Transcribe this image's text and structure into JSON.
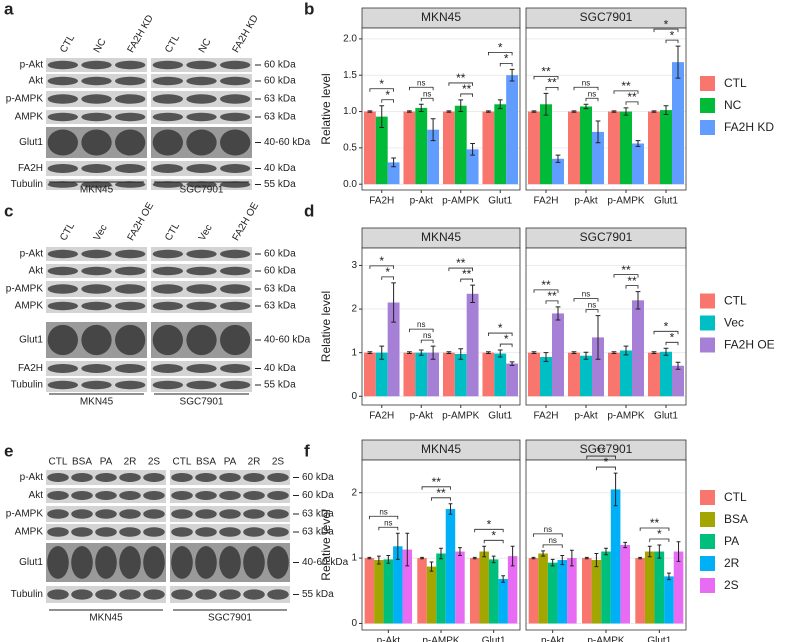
{
  "blots": [
    {
      "label": "a",
      "lanes": [
        "CTL",
        "NC",
        "FA2H KD",
        "CTL",
        "NC",
        "FA2H KD"
      ],
      "rows": [
        {
          "protein": "p-Akt",
          "size": "60 kDa"
        },
        {
          "protein": "Akt",
          "size": "60 kDa"
        },
        {
          "protein": "p-AMPK",
          "size": "63 kDa"
        },
        {
          "protein": "AMPK",
          "size": "63 kDa"
        },
        {
          "protein": "Glut1",
          "size": "40-60 kDa"
        },
        {
          "protein": "FA2H",
          "size": "40 kDa"
        },
        {
          "protein": "Tubulin",
          "size": "55 kDa"
        }
      ],
      "groups": [
        "MKN45",
        "SGC7901"
      ]
    },
    {
      "label": "c",
      "lanes": [
        "CTL",
        "Vec",
        "FA2H OE",
        "CTL",
        "Vec",
        "FA2H OE"
      ],
      "rows": [
        {
          "protein": "p-Akt",
          "size": "60 kDa"
        },
        {
          "protein": "Akt",
          "size": "60 kDa"
        },
        {
          "protein": "p-AMPK",
          "size": "63 kDa"
        },
        {
          "protein": "AMPK",
          "size": "63 kDa"
        },
        {
          "protein": "Glut1",
          "size": "40-60 kDa"
        },
        {
          "protein": "FA2H",
          "size": "40 kDa"
        },
        {
          "protein": "Tubulin",
          "size": "55 kDa"
        }
      ],
      "groups": [
        "MKN45",
        "SGC7901"
      ]
    },
    {
      "label": "e",
      "lanes": [
        "CTL",
        "BSA",
        "PA",
        "2R",
        "2S",
        "CTL",
        "BSA",
        "PA",
        "2R",
        "2S"
      ],
      "rows": [
        {
          "protein": "p-Akt",
          "size": "60 kDa"
        },
        {
          "protein": "Akt",
          "size": "60 kDa"
        },
        {
          "protein": "p-AMPK",
          "size": "63 kDa"
        },
        {
          "protein": "AMPK",
          "size": "63 kDa"
        },
        {
          "protein": "Glut1",
          "size": "40-60 kDa"
        },
        {
          "protein": "Tubulin",
          "size": "55 kDa"
        }
      ],
      "groups": [
        "MKN45",
        "SGC7901"
      ]
    }
  ],
  "chart_data": [
    {
      "type": "bar",
      "label": "b",
      "ylabel": "Relative level",
      "ylim": [
        -0.08,
        2.15
      ],
      "yticks": [
        {
          "value": 0,
          "label": "0.0"
        },
        {
          "value": 0.5,
          "label": "0.5"
        },
        {
          "value": 1,
          "label": "1.0"
        },
        {
          "value": 1.5,
          "label": "1.5"
        },
        {
          "value": 2,
          "label": "2.0"
        }
      ],
      "grid": true,
      "legend": "right",
      "series": [
        {
          "name": "CTL",
          "color": "#F8766D"
        },
        {
          "name": "NC",
          "color": "#00BA38"
        },
        {
          "name": "FA2H KD",
          "color": "#619CFF"
        }
      ],
      "facets": [
        {
          "title": "MKN45",
          "categories": [
            "FA2H",
            "p-Akt",
            "p-AMPK",
            "Glut1"
          ],
          "values": [
            [
              1,
              1,
              1,
              1
            ],
            [
              0.93,
              1.05,
              1.08,
              1.1
            ],
            [
              0.3,
              0.75,
              0.48,
              1.5
            ]
          ],
          "errors": [
            [
              0.01,
              0.01,
              0.01,
              0.01
            ],
            [
              0.15,
              0.05,
              0.08,
              0.06
            ],
            [
              0.06,
              0.15,
              0.08,
              0.08
            ]
          ],
          "annotations": [
            {
              "category": "FA2H",
              "vs": "FA2H KD",
              "labels": [
                "*",
                "*"
              ]
            },
            {
              "category": "p-Akt",
              "vs": "FA2H KD",
              "labels": [
                "ns",
                "ns"
              ]
            },
            {
              "category": "p-AMPK",
              "vs": "FA2H KD",
              "labels": [
                "**",
                "**"
              ]
            },
            {
              "category": "Glut1",
              "vs": "FA2H KD",
              "labels": [
                "*",
                "*"
              ]
            }
          ]
        },
        {
          "title": "SGC7901",
          "categories": [
            "FA2H",
            "p-Akt",
            "p-AMPK",
            "Glut1"
          ],
          "values": [
            [
              1,
              1,
              1,
              1
            ],
            [
              1.1,
              1.07,
              1,
              1.02
            ],
            [
              0.35,
              0.72,
              0.56,
              1.68
            ]
          ],
          "errors": [
            [
              0.01,
              0.01,
              0.01,
              0.01
            ],
            [
              0.15,
              0.03,
              0.05,
              0.06
            ],
            [
              0.05,
              0.15,
              0.04,
              0.22
            ]
          ],
          "annotations": [
            {
              "category": "FA2H",
              "vs": "FA2H KD",
              "labels": [
                "**",
                "**"
              ]
            },
            {
              "category": "p-Akt",
              "vs": "FA2H KD",
              "labels": [
                "ns",
                "ns"
              ]
            },
            {
              "category": "p-AMPK",
              "vs": "FA2H KD",
              "labels": [
                "**",
                "**"
              ]
            },
            {
              "category": "Glut1",
              "vs": "FA2H KD",
              "labels": [
                "*",
                "*"
              ]
            }
          ]
        }
      ]
    },
    {
      "type": "bar",
      "label": "d",
      "ylabel": "Relative level",
      "ylim": [
        -0.2,
        3.4
      ],
      "yticks": [
        0,
        1,
        2,
        3
      ],
      "grid": true,
      "legend": "right",
      "series": [
        {
          "name": "CTL",
          "color": "#F8766D"
        },
        {
          "name": "Vec",
          "color": "#00BFC4"
        },
        {
          "name": "FA2H OE",
          "color": "#A67FD6"
        }
      ],
      "facets": [
        {
          "title": "MKN45",
          "categories": [
            "FA2H",
            "p-Akt",
            "p-AMPK",
            "Glut1"
          ],
          "values": [
            [
              1,
              1,
              1,
              1
            ],
            [
              1,
              1,
              0.97,
              0.98
            ],
            [
              2.15,
              1,
              2.35,
              0.75
            ]
          ],
          "errors": [
            [
              0.02,
              0.02,
              0.02,
              0.02
            ],
            [
              0.15,
              0.06,
              0.12,
              0.08
            ],
            [
              0.45,
              0.15,
              0.2,
              0.04
            ]
          ],
          "annotations": [
            {
              "category": "FA2H",
              "vs": "FA2H OE",
              "labels": [
                "*",
                "*"
              ]
            },
            {
              "category": "p-Akt",
              "vs": "FA2H OE",
              "labels": [
                "ns",
                "ns"
              ]
            },
            {
              "category": "p-AMPK",
              "vs": "FA2H OE",
              "labels": [
                "**",
                "**"
              ]
            },
            {
              "category": "Glut1",
              "vs": "FA2H OE",
              "labels": [
                "*",
                "*"
              ]
            }
          ]
        },
        {
          "title": "SGC7901",
          "categories": [
            "FA2H",
            "p-Akt",
            "p-AMPK",
            "Glut1"
          ],
          "values": [
            [
              1,
              1,
              1,
              1
            ],
            [
              0.9,
              0.93,
              1.05,
              1.02
            ],
            [
              1.9,
              1.35,
              2.2,
              0.7
            ]
          ],
          "errors": [
            [
              0.02,
              0.02,
              0.02,
              0.02
            ],
            [
              0.1,
              0.08,
              0.1,
              0.08
            ],
            [
              0.15,
              0.5,
              0.2,
              0.08
            ]
          ],
          "annotations": [
            {
              "category": "FA2H",
              "vs": "FA2H OE",
              "labels": [
                "**",
                "**"
              ]
            },
            {
              "category": "p-Akt",
              "vs": "FA2H OE",
              "labels": [
                "ns",
                "ns"
              ]
            },
            {
              "category": "p-AMPK",
              "vs": "FA2H OE",
              "labels": [
                "**",
                "**"
              ]
            },
            {
              "category": "Glut1",
              "vs": "FA2H OE",
              "labels": [
                "*",
                "*"
              ]
            }
          ]
        }
      ]
    },
    {
      "type": "bar",
      "label": "f",
      "ylabel": "Relative level",
      "ylim": [
        -0.1,
        2.5
      ],
      "yticks": [
        0,
        1,
        2
      ],
      "grid": true,
      "legend": "right",
      "series": [
        {
          "name": "CTL",
          "color": "#F8766D"
        },
        {
          "name": "BSA",
          "color": "#A3A500"
        },
        {
          "name": "PA",
          "color": "#00BF7D"
        },
        {
          "name": "2R",
          "color": "#00B0F6"
        },
        {
          "name": "2S",
          "color": "#E76BF3"
        }
      ],
      "facets": [
        {
          "title": "MKN45",
          "categories": [
            "p-Akt",
            "p-AMPK",
            "Glut1"
          ],
          "values": [
            [
              1,
              1,
              1
            ],
            [
              0.97,
              0.87,
              1.1
            ],
            [
              0.98,
              1.07,
              0.98
            ],
            [
              1.18,
              1.75,
              0.68
            ],
            [
              1.13,
              1.1,
              1.03
            ]
          ],
          "errors": [
            [
              0.01,
              0.01,
              0.01
            ],
            [
              0.06,
              0.07,
              0.08
            ],
            [
              0.06,
              0.08,
              0.05
            ],
            [
              0.2,
              0.08,
              0.05
            ],
            [
              0.25,
              0.06,
              0.15
            ]
          ],
          "annotations": [
            {
              "category": "p-Akt",
              "vs": "2R",
              "labels": [
                "ns",
                "ns"
              ]
            },
            {
              "category": "p-AMPK",
              "vs": "2R",
              "labels": [
                "**",
                "**"
              ]
            },
            {
              "category": "Glut1",
              "vs": "2R",
              "labels": [
                "*",
                "*"
              ]
            }
          ]
        },
        {
          "title": "SGC7901",
          "categories": [
            "p-Akt",
            "p-AMPK",
            "Glut1"
          ],
          "values": [
            [
              1,
              1,
              1
            ],
            [
              1.07,
              0.97,
              1.1
            ],
            [
              0.93,
              1.1,
              1.1
            ],
            [
              0.97,
              2.05,
              0.72
            ],
            [
              1,
              1.2,
              1.1
            ]
          ],
          "errors": [
            [
              0.01,
              0.01,
              0.01
            ],
            [
              0.04,
              0.1,
              0.08
            ],
            [
              0.05,
              0.05,
              0.1
            ],
            [
              0.07,
              0.25,
              0.05
            ],
            [
              0.12,
              0.04,
              0.15
            ]
          ],
          "annotations": [
            {
              "category": "p-Akt",
              "vs": "2R",
              "labels": [
                "ns",
                "ns"
              ]
            },
            {
              "category": "p-AMPK",
              "vs": "2R",
              "labels": [
                "**",
                "*"
              ]
            },
            {
              "category": "Glut1",
              "vs": "2R",
              "labels": [
                "**",
                "*"
              ]
            }
          ]
        }
      ]
    }
  ]
}
